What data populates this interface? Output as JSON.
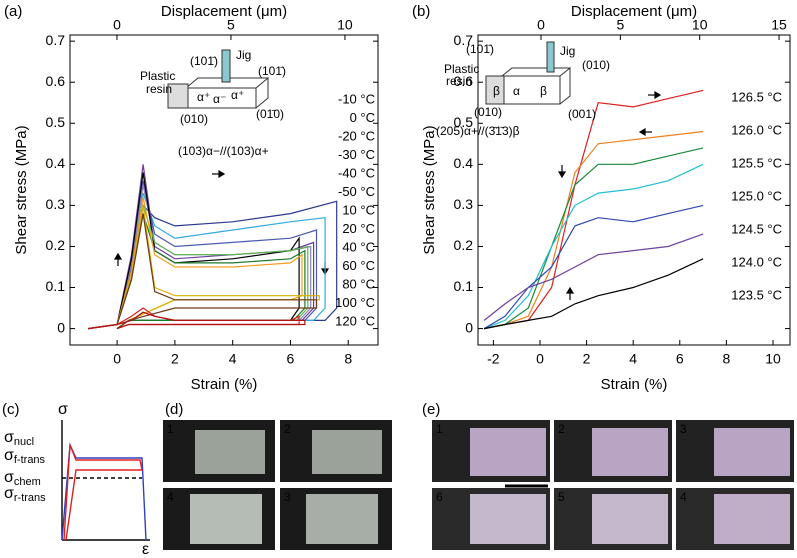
{
  "chart_data": [
    {
      "type": "line",
      "panel": "(a)",
      "xlabel": "Strain (%)",
      "x2label": "Displacement (μm)",
      "ylabel": "Shear stress (MPa)",
      "xlim": [
        -1.63,
        9.03
      ],
      "xticks": [
        0,
        2,
        4,
        6,
        8
      ],
      "x2lim": [
        -2.06,
        11.45
      ],
      "x2ticks": [
        0,
        5,
        10
      ],
      "ylim": [
        -0.04,
        0.715
      ],
      "yticks": [
        0,
        0.1,
        0.2,
        0.3,
        0.4,
        0.5,
        0.6,
        0.7
      ],
      "annotations": [
        "(101̄)",
        "Jig",
        "Plastic",
        "resin",
        "(101̄)",
        "(010)",
        "(01̄0)",
        "(103)α−//(103)α+",
        "α⁺",
        "α⁻",
        "α⁺"
      ],
      "series": [
        {
          "name": "-10 °C",
          "color": "#2b3a8f",
          "x": [
            -1,
            0,
            0.5,
            0.9,
            1.3,
            2,
            4,
            6,
            7.6,
            7.6,
            7.2,
            2,
            0.4,
            0
          ],
          "values": [
            0,
            0.01,
            0.12,
            0.3,
            0.27,
            0.25,
            0.26,
            0.28,
            0.31,
            0.05,
            0.02,
            0.02,
            0.02,
            0
          ]
        },
        {
          "name": "0 °C",
          "color": "#33a9e0",
          "x": [
            -1,
            0,
            0.5,
            0.9,
            1.3,
            2,
            4,
            6,
            7.2,
            7.2,
            6.8,
            2,
            0.4,
            0
          ],
          "values": [
            0,
            0.01,
            0.14,
            0.33,
            0.25,
            0.22,
            0.24,
            0.26,
            0.27,
            0.05,
            0.02,
            0.02,
            0.02,
            0
          ]
        },
        {
          "name": "-20 °C",
          "color": "#4a5bb0",
          "x": [
            -1,
            0,
            0.5,
            0.9,
            1.3,
            2,
            4,
            6,
            6.9,
            6.9,
            6.5,
            2,
            0.4,
            0
          ],
          "values": [
            0,
            0.01,
            0.15,
            0.36,
            0.23,
            0.2,
            0.21,
            0.22,
            0.24,
            0.05,
            0.02,
            0.02,
            0.02,
            0
          ]
        },
        {
          "name": "-30 °C",
          "color": "#6a3d9a",
          "x": [
            -1,
            0,
            0.5,
            0.9,
            1.3,
            2,
            4,
            6,
            6.8,
            6.8,
            6.4,
            2,
            0.4,
            0
          ],
          "values": [
            0,
            0.01,
            0.18,
            0.4,
            0.2,
            0.17,
            0.18,
            0.19,
            0.21,
            0.05,
            0.02,
            0.02,
            0.02,
            0
          ]
        },
        {
          "name": "-40 °C",
          "color": "#8a7fc0",
          "x": [
            -1,
            0,
            0.5,
            0.9,
            1.3,
            2,
            4,
            6,
            6.7,
            6.7,
            6.3,
            2,
            0.4,
            0
          ],
          "values": [
            0,
            0.01,
            0.16,
            0.35,
            0.21,
            0.18,
            0.18,
            0.19,
            0.2,
            0.05,
            0.02,
            0.02,
            0.02,
            0
          ]
        },
        {
          "name": "-50 °C",
          "color": "#000000",
          "x": [
            -1,
            0,
            0.5,
            0.9,
            1.3,
            2,
            4,
            6,
            6.3,
            6.3,
            6,
            2,
            0.4,
            0
          ],
          "values": [
            0,
            0.01,
            0.17,
            0.38,
            0.19,
            0.16,
            0.17,
            0.19,
            0.22,
            0.05,
            0.02,
            0.02,
            0.02,
            0
          ]
        },
        {
          "name": "10 °C",
          "color": "#5ab947",
          "x": [
            -1,
            0,
            0.5,
            0.9,
            1.3,
            2,
            4,
            6,
            6.6,
            6.6,
            6.2,
            2,
            0.4,
            0
          ],
          "values": [
            0,
            0.01,
            0.13,
            0.3,
            0.21,
            0.18,
            0.18,
            0.19,
            0.2,
            0.05,
            0.02,
            0.02,
            0.02,
            0
          ]
        },
        {
          "name": "20 °C",
          "color": "#1a7a2a",
          "x": [
            -1,
            0,
            0.5,
            0.9,
            1.3,
            2,
            4,
            6,
            6.5,
            6.5,
            6.1,
            2,
            0.4,
            0
          ],
          "values": [
            0,
            0.01,
            0.12,
            0.28,
            0.19,
            0.16,
            0.16,
            0.17,
            0.19,
            0.05,
            0.02,
            0.02,
            0.02,
            0
          ]
        },
        {
          "name": "40 °C",
          "color": "#f0a020",
          "x": [
            -1,
            0,
            0.5,
            0.9,
            1.3,
            2,
            4,
            6,
            6.4,
            6.4,
            6,
            2,
            0.4,
            0
          ],
          "values": [
            0,
            0.01,
            0.14,
            0.32,
            0.18,
            0.15,
            0.15,
            0.16,
            0.18,
            0.08,
            0.07,
            0.07,
            0.02,
            0
          ]
        },
        {
          "name": "60 °C",
          "color": "#d8b000",
          "x": [
            -1,
            0,
            0.5,
            0.9,
            1.3,
            2,
            4,
            6,
            7,
            7,
            6.6,
            2,
            0.4,
            0
          ],
          "values": [
            0,
            0.01,
            0.13,
            0.3,
            0.1,
            0.08,
            0.08,
            0.08,
            0.08,
            0.07,
            0.07,
            0.07,
            0.02,
            0
          ]
        },
        {
          "name": "80 °C",
          "color": "#6b3a1a",
          "x": [
            -1,
            0,
            0.5,
            0.9,
            1.3,
            2,
            4,
            6,
            6.9,
            6.9,
            6.5,
            2,
            0.4,
            0
          ],
          "values": [
            0,
            0.01,
            0.12,
            0.28,
            0.09,
            0.07,
            0.07,
            0.07,
            0.07,
            0.05,
            0.05,
            0.05,
            0.02,
            0
          ]
        },
        {
          "name": "100 °C",
          "color": "#e02020",
          "x": [
            -1,
            0,
            0.5,
            0.9,
            1.3,
            2,
            4,
            6,
            6.3,
            6.3,
            5.9,
            2,
            0.4,
            0
          ],
          "values": [
            0,
            0.01,
            0.03,
            0.05,
            0.03,
            0.02,
            0.02,
            0.02,
            0.03,
            0.01,
            0.01,
            0.01,
            0.01,
            0
          ]
        },
        {
          "name": "120 °C",
          "color": "#b01010",
          "x": [
            -1,
            0,
            0.5,
            0.9,
            1.3,
            2,
            4,
            6,
            6.5,
            6.5,
            6.1,
            2,
            0.4,
            0
          ],
          "values": [
            0,
            0.01,
            0.02,
            0.04,
            0.03,
            0.02,
            0.02,
            0.02,
            0.02,
            0.01,
            0.01,
            0.01,
            0.01,
            0
          ]
        }
      ]
    },
    {
      "type": "line",
      "panel": "(b)",
      "xlabel": "Strain (%)",
      "x2label": "Displacement (μm)",
      "ylabel": "Shear stress (MPa)",
      "xlim": [
        -2.66,
        10.73
      ],
      "xticks": [
        -2,
        0,
        2,
        4,
        6,
        8,
        10
      ],
      "x2lim": [
        -3.97,
        15.69
      ],
      "x2ticks": [
        0,
        5,
        10,
        15
      ],
      "ylim": [
        -0.04,
        0.715
      ],
      "yticks": [
        0,
        0.1,
        0.2,
        0.3,
        0.4,
        0.5,
        0.6,
        0.7
      ],
      "annotations": [
        "(101̄)",
        "Jig",
        "(010)",
        "Plastic",
        "resin",
        "(010)",
        "(001)",
        "(205)α+//(3̄1̄3)β",
        "β",
        "α",
        "β"
      ],
      "series": [
        {
          "name": "126.5 °C",
          "color": "#e02020",
          "x": [
            -2.4,
            -1.5,
            -0.5,
            0.5,
            1.5,
            2.5,
            4,
            5.5,
            7
          ],
          "values": [
            0,
            0.01,
            0.02,
            0.1,
            0.35,
            0.55,
            0.54,
            0.56,
            0.58
          ]
        },
        {
          "name": "126.0 °C",
          "color": "#f08020",
          "x": [
            -2.4,
            -1.5,
            -0.5,
            0.5,
            1.5,
            2.5,
            4,
            5.5,
            7
          ],
          "values": [
            0,
            0.01,
            0.03,
            0.15,
            0.38,
            0.45,
            0.46,
            0.47,
            0.48
          ]
        },
        {
          "name": "125.5 °C",
          "color": "#1a8a3a",
          "x": [
            -2.4,
            -1.5,
            -0.5,
            0.5,
            1.5,
            2.5,
            4,
            5.5,
            7
          ],
          "values": [
            0,
            0.01,
            0.05,
            0.2,
            0.35,
            0.4,
            0.4,
            0.42,
            0.44
          ]
        },
        {
          "name": "125.0 °C",
          "color": "#20c0d0",
          "x": [
            -2.4,
            -1.5,
            -0.5,
            0.5,
            1.5,
            2.5,
            4,
            5.5,
            7
          ],
          "values": [
            0,
            0.02,
            0.08,
            0.2,
            0.3,
            0.33,
            0.34,
            0.36,
            0.4
          ]
        },
        {
          "name": "124.5 °C",
          "color": "#3048b0",
          "x": [
            -2.4,
            -1.5,
            -0.5,
            0.5,
            1.5,
            2.5,
            4,
            5.5,
            7
          ],
          "values": [
            0,
            0.03,
            0.1,
            0.15,
            0.25,
            0.27,
            0.26,
            0.28,
            0.3
          ]
        },
        {
          "name": "124.0 °C",
          "color": "#7040a0",
          "x": [
            -2.4,
            -1.5,
            -0.5,
            0.5,
            1.5,
            2.5,
            4,
            5.5,
            7
          ],
          "values": [
            0.02,
            0.06,
            0.1,
            0.12,
            0.15,
            0.18,
            0.19,
            0.2,
            0.23
          ]
        },
        {
          "name": "123.5 °C",
          "color": "#000000",
          "x": [
            -2.4,
            -1.5,
            -0.5,
            0.5,
            1.5,
            2.5,
            4,
            5.5,
            7
          ],
          "values": [
            0,
            0.01,
            0.02,
            0.03,
            0.06,
            0.08,
            0.1,
            0.13,
            0.17
          ]
        }
      ]
    }
  ],
  "panels": {
    "c": {
      "label": "(c)",
      "axis_y": "σ",
      "axis_x": "ε",
      "levels": [
        {
          "main": "σ",
          "sub": "nucl"
        },
        {
          "main": "σ",
          "sub": "f-trans"
        },
        {
          "main": "σ",
          "sub": "chem"
        },
        {
          "main": "σ",
          "sub": "r-trans"
        }
      ]
    },
    "d": {
      "label": "(d)",
      "frames": [
        "1",
        "2",
        "4",
        "3"
      ]
    },
    "e": {
      "label": "(e)",
      "frames": [
        "1",
        "2",
        "3",
        "6",
        "5",
        "4"
      ]
    }
  }
}
